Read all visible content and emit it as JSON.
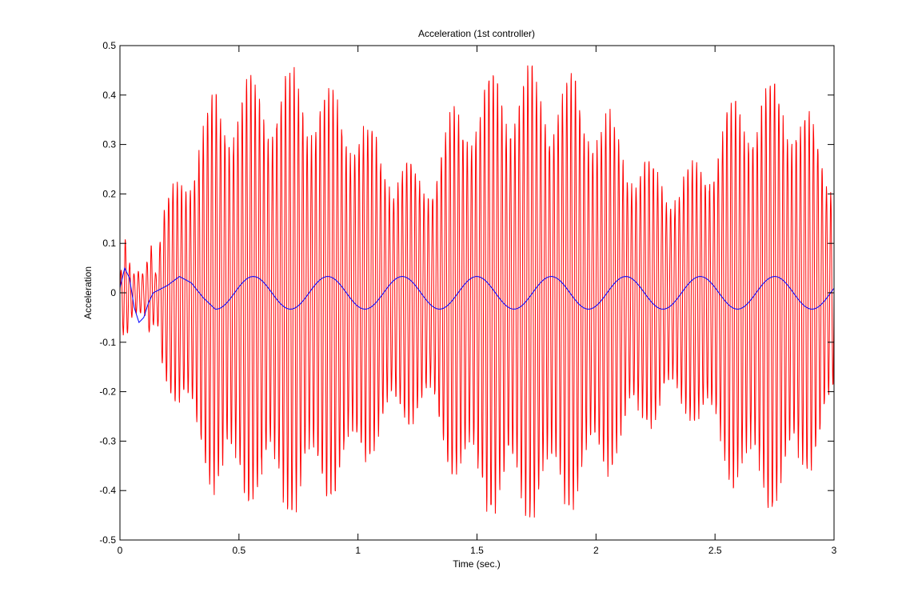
{
  "chart_data": {
    "type": "line",
    "title": "Acceleration (1st controller)",
    "xlabel": "Time (sec.)",
    "ylabel": "Acceleration",
    "xlim": [
      0,
      3
    ],
    "ylim": [
      -0.5,
      0.5
    ],
    "xticks": [
      0,
      0.5,
      1,
      1.5,
      2,
      2.5,
      3
    ],
    "xtick_labels": [
      "0",
      "0.5",
      "1",
      "1.5",
      "2",
      "2.5",
      "3"
    ],
    "yticks": [
      -0.5,
      -0.4,
      -0.3,
      -0.2,
      -0.1,
      0,
      0.1,
      0.2,
      0.3,
      0.4,
      0.5
    ],
    "ytick_labels": [
      "-0.5",
      "-0.4",
      "-0.3",
      "-0.2",
      "-0.1",
      "0",
      "0.1",
      "0.2",
      "0.3",
      "0.4",
      "0.5"
    ],
    "grid": false,
    "legend": "none",
    "series": [
      {
        "color": "#ff0000",
        "description": "high-frequency oscillation (~55 Hz) with amplitude envelope beating between about 0.25 and 0.46",
        "x": [
          0,
          0.02,
          0.04,
          0.06,
          0.08,
          0.1,
          0.13,
          0.15,
          0.18,
          0.2,
          0.25,
          0.3,
          0.4,
          0.5,
          0.6,
          0.7,
          0.76,
          0.85,
          0.95,
          1.05,
          1.15,
          1.25,
          1.3,
          1.4,
          1.5,
          1.6,
          1.68,
          1.78,
          1.9,
          2.0,
          2.1,
          2.2,
          2.3,
          2.4,
          2.45,
          2.55,
          2.65,
          2.75,
          2.85,
          2.95,
          3.0
        ],
        "envelope": [
          0.03,
          0.12,
          0.06,
          0.04,
          0.05,
          0.05,
          0.14,
          0.05,
          0.17,
          0.19,
          0.25,
          0.3,
          0.42,
          0.43,
          0.44,
          0.45,
          0.46,
          0.42,
          0.41,
          0.34,
          0.28,
          0.26,
          0.26,
          0.38,
          0.44,
          0.45,
          0.47,
          0.45,
          0.44,
          0.4,
          0.33,
          0.28,
          0.24,
          0.26,
          0.28,
          0.38,
          0.43,
          0.44,
          0.42,
          0.3,
          0.27
        ],
        "frequency_hz": 55
      },
      {
        "color": "#0000ff",
        "description": "slow sinusoid (period about 0.31 s, amplitude about 0.033) with initial transient",
        "x": [
          0,
          0.02,
          0.04,
          0.06,
          0.08,
          0.1,
          0.12,
          0.14,
          0.16,
          0.18,
          0.2,
          0.25,
          0.3,
          0.35,
          0.4,
          0.56,
          0.72,
          0.87,
          1.03,
          1.19,
          1.35,
          1.5,
          1.66,
          1.82,
          1.97,
          2.13,
          2.29,
          2.45,
          2.6,
          2.76,
          2.92,
          3.0
        ],
        "y": [
          0.01,
          0.05,
          0.03,
          -0.03,
          -0.06,
          -0.05,
          -0.02,
          0.0,
          0.005,
          0.01,
          0.015,
          0.033,
          0.02,
          -0.01,
          -0.033,
          0.033,
          -0.033,
          0.033,
          -0.033,
          0.033,
          -0.033,
          0.033,
          -0.033,
          0.033,
          -0.033,
          0.033,
          -0.033,
          0.033,
          -0.033,
          0.033,
          -0.033,
          0.0
        ]
      }
    ]
  }
}
